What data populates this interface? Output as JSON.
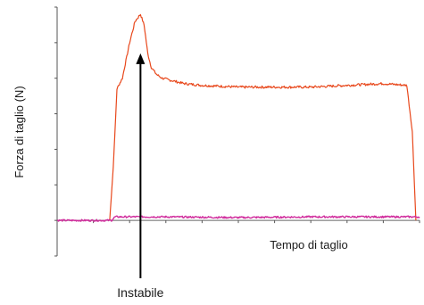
{
  "chart_data": {
    "type": "line",
    "xlabel": "Tempo di taglio",
    "ylabel": "Forza di taglio (N)",
    "xlim": [
      0,
      20
    ],
    "ylim": [
      -100,
      600
    ],
    "grid": false,
    "series": [
      {
        "color": "#e8481c",
        "x": [
          2.9,
          3.1,
          3.3,
          3.6,
          4.0,
          4.3,
          4.6,
          4.8,
          5.0,
          5.2,
          5.5,
          5.8,
          6.2,
          7.0,
          8.0,
          10.0,
          12.0,
          14.0,
          16.0,
          18.0,
          19.3,
          19.6,
          19.8
        ],
        "y": [
          0,
          150,
          370,
          400,
          500,
          560,
          580,
          550,
          470,
          430,
          410,
          400,
          395,
          385,
          380,
          375,
          375,
          375,
          380,
          385,
          380,
          250,
          0
        ]
      },
      {
        "color": "#d02c9c",
        "x": [
          0,
          3.0,
          3.2,
          6.0,
          10.0,
          14.0,
          18.0,
          20.0
        ],
        "y": [
          0,
          0,
          10,
          10,
          8,
          10,
          10,
          10
        ]
      }
    ],
    "annotations": [
      {
        "text": "Instabile",
        "x": 4.6,
        "y": 470
      }
    ]
  }
}
